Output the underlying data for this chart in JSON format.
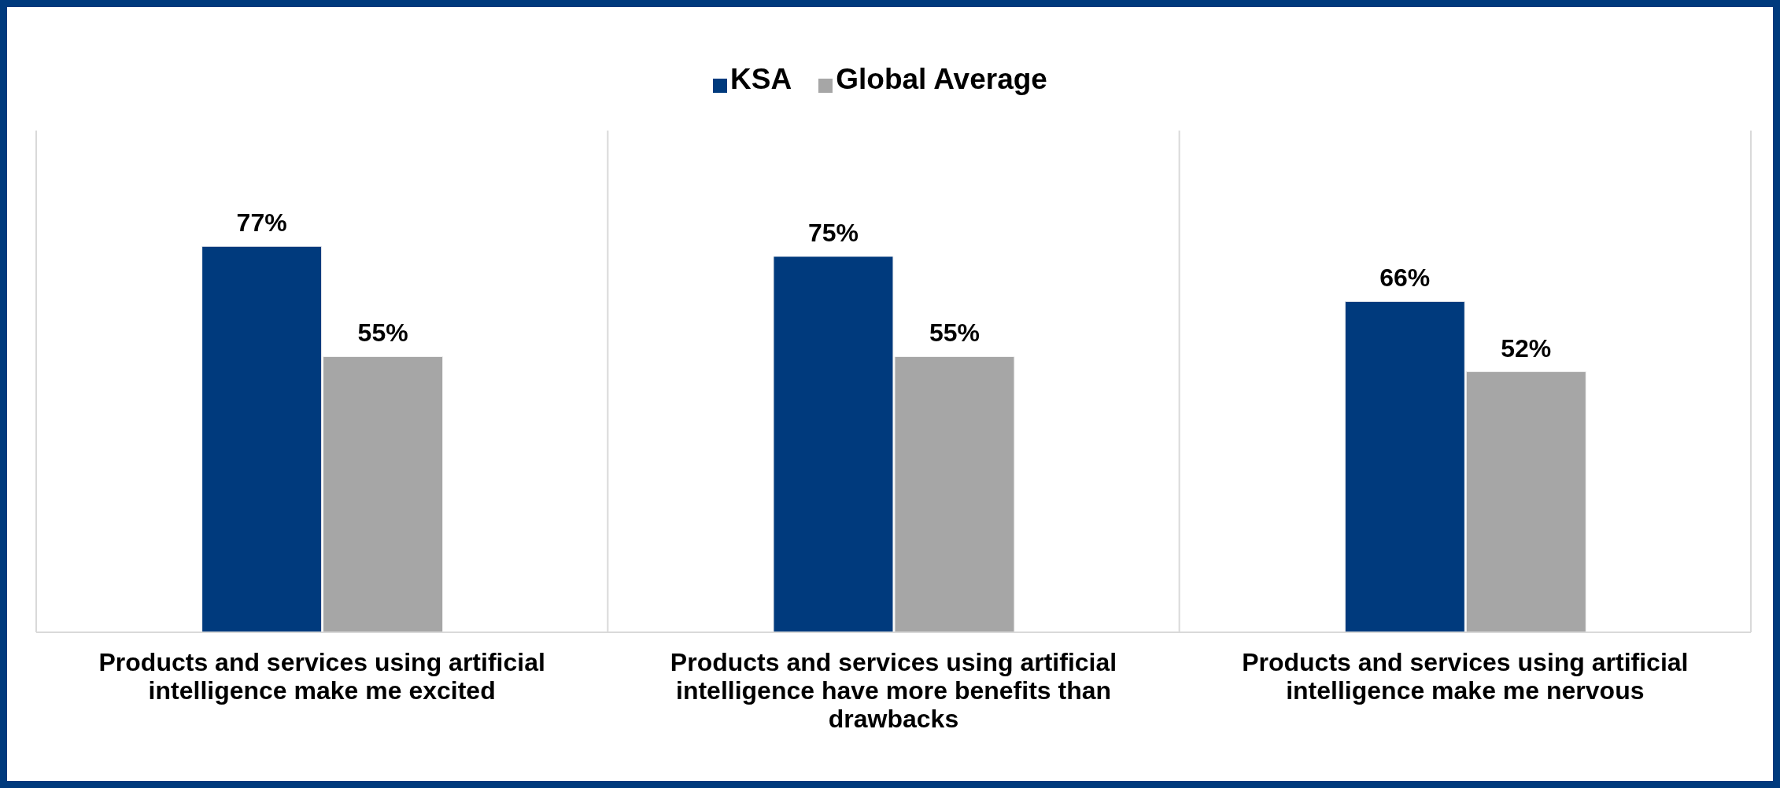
{
  "chart_data": {
    "type": "bar",
    "categories": [
      "Products and services using artificial intelligence make me excited",
      "Products and services using artificial intelligence have more benefits than drawbacks",
      "Products and services using artificial intelligence make me nervous"
    ],
    "series": [
      {
        "name": "KSA",
        "color": "#003a7d",
        "values": [
          77,
          75,
          66
        ],
        "value_labels": [
          "77%",
          "75%",
          "66%"
        ]
      },
      {
        "name": "Global Average",
        "color": "#a6a6a6",
        "values": [
          55,
          55,
          52
        ],
        "value_labels": [
          "55%",
          "55%",
          "52%"
        ]
      }
    ],
    "legend": "top",
    "grid": "x",
    "tick_labels": "x"
  }
}
